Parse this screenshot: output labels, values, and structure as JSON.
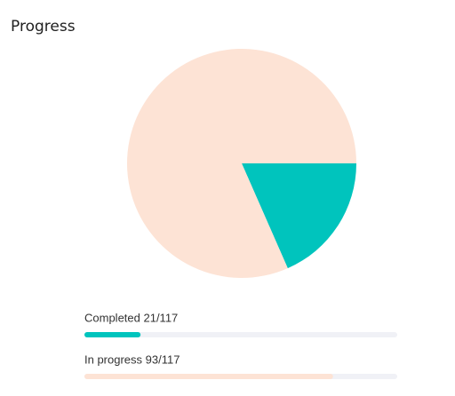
{
  "chart_data": {
    "type": "pie",
    "title": "Progress",
    "values": [
      21,
      93
    ],
    "colors": [
      "#00c4bd",
      "#fde3d5"
    ],
    "bars": [
      {
        "label": "Completed 21/117",
        "value": 21,
        "max": 117,
        "color": "#00c4bd"
      },
      {
        "label": "In progress 93/117",
        "value": 93,
        "max": 117,
        "color": "#fde3d5"
      }
    ]
  }
}
